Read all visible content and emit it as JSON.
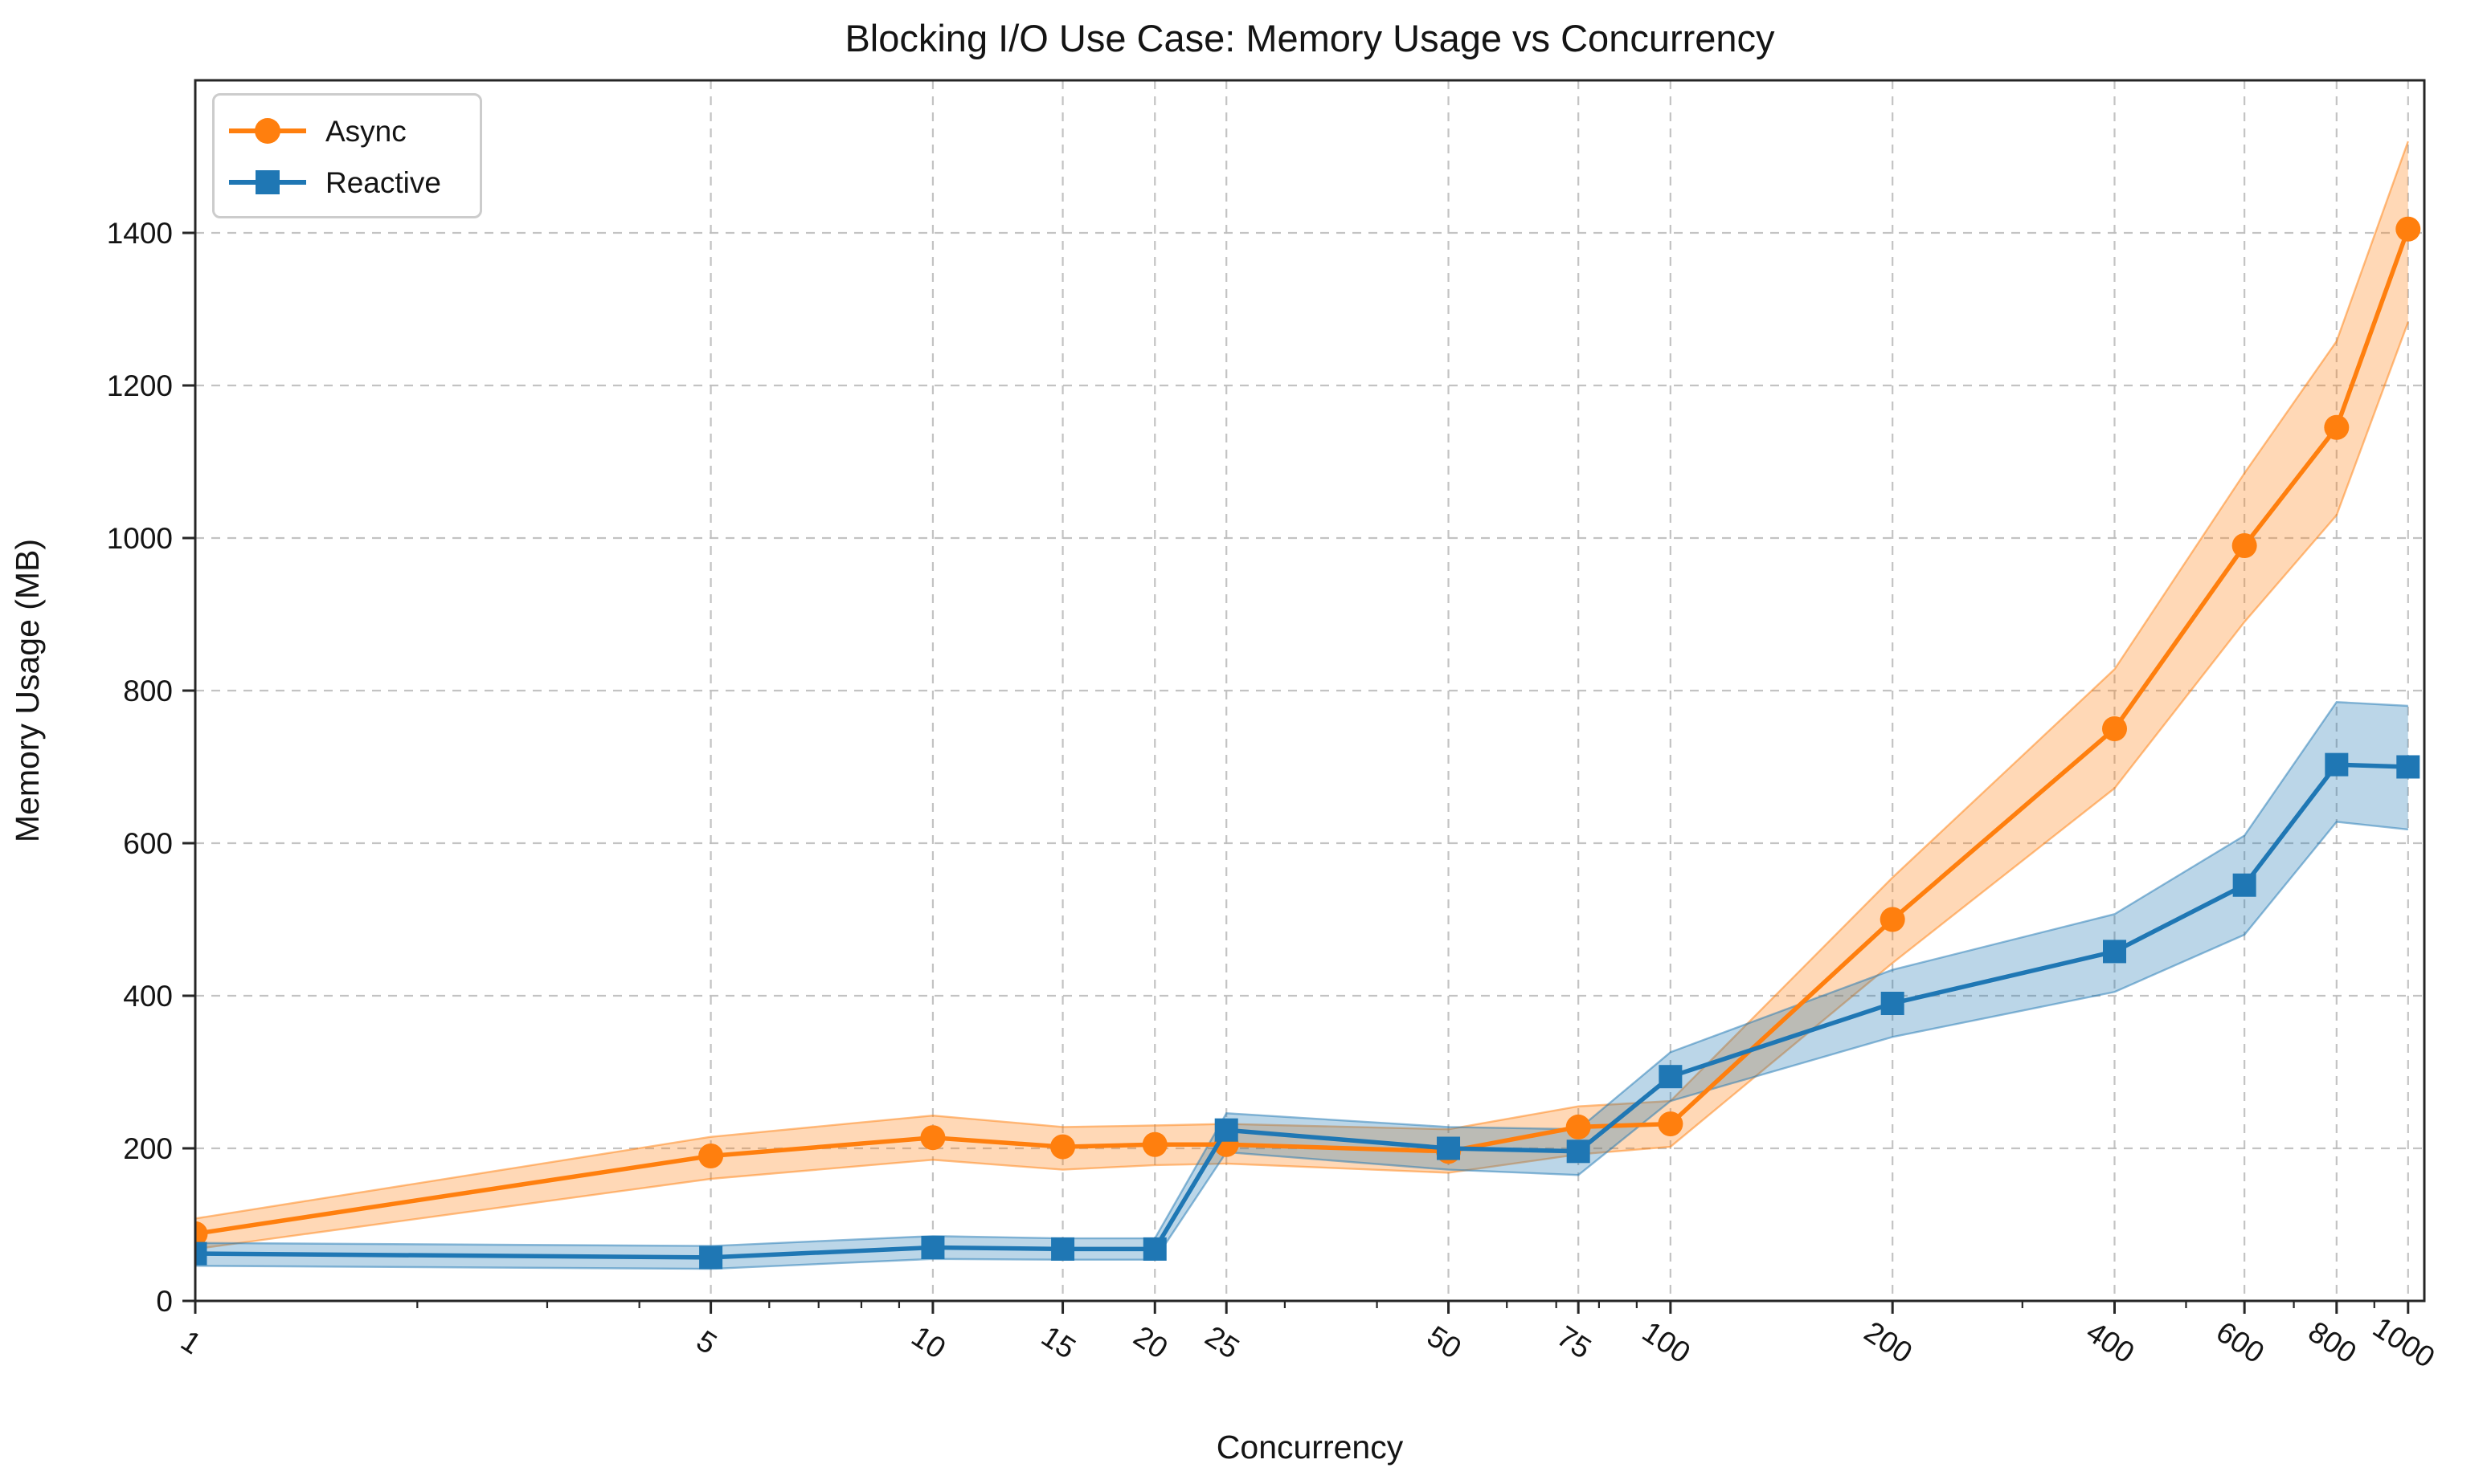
{
  "page": {
    "background": "#ffffff"
  },
  "chart_data": {
    "type": "line",
    "title": "Blocking I/O Use Case: Memory Usage vs Concurrency",
    "xlabel": "Concurrency",
    "ylabel": "Memory Usage (MB)",
    "x_scale": "log",
    "xlim": [
      1,
      1052
    ],
    "ylim": [
      0,
      1600
    ],
    "x_ticks": [
      1,
      5,
      10,
      15,
      20,
      25,
      50,
      75,
      100,
      200,
      400,
      600,
      800,
      1000
    ],
    "x_minor_ticks": [
      2,
      3,
      4,
      6,
      7,
      8,
      9,
      30,
      40,
      60,
      70,
      80,
      90,
      300,
      500,
      700,
      900
    ],
    "y_ticks": [
      0,
      200,
      400,
      600,
      800,
      1000,
      1200,
      1400
    ],
    "grid": true,
    "legend_position": "upper-left",
    "x": [
      1,
      5,
      10,
      15,
      20,
      25,
      50,
      75,
      100,
      200,
      400,
      600,
      800,
      1000
    ],
    "series": [
      {
        "name": "Async",
        "color": "#ff7f0e",
        "marker": "circle",
        "values": [
          88,
          190,
          214,
          202,
          205,
          205,
          196,
          228,
          232,
          500,
          750,
          990,
          1145,
          1405
        ],
        "band_low": [
          68,
          160,
          185,
          172,
          178,
          180,
          168,
          192,
          202,
          443,
          672,
          890,
          1030,
          1283
        ],
        "band_high": [
          108,
          215,
          243,
          228,
          230,
          232,
          225,
          255,
          262,
          555,
          828,
          1085,
          1258,
          1520
        ]
      },
      {
        "name": "Reactive",
        "color": "#1f77b4",
        "marker": "square",
        "values": [
          62,
          57,
          70,
          68,
          68,
          224,
          200,
          196,
          294,
          390,
          458,
          545,
          703,
          700
        ],
        "band_low": [
          46,
          42,
          55,
          54,
          54,
          195,
          172,
          165,
          262,
          346,
          405,
          480,
          628,
          618
        ],
        "band_high": [
          76,
          72,
          85,
          82,
          82,
          246,
          228,
          225,
          326,
          434,
          507,
          610,
          785,
          780
        ]
      }
    ],
    "styles": {
      "grid_color": "#bdbdbd",
      "spine_color": "#262626",
      "tick_color": "#262626",
      "text_color": "#141414",
      "band_opacity": 0.3
    }
  }
}
